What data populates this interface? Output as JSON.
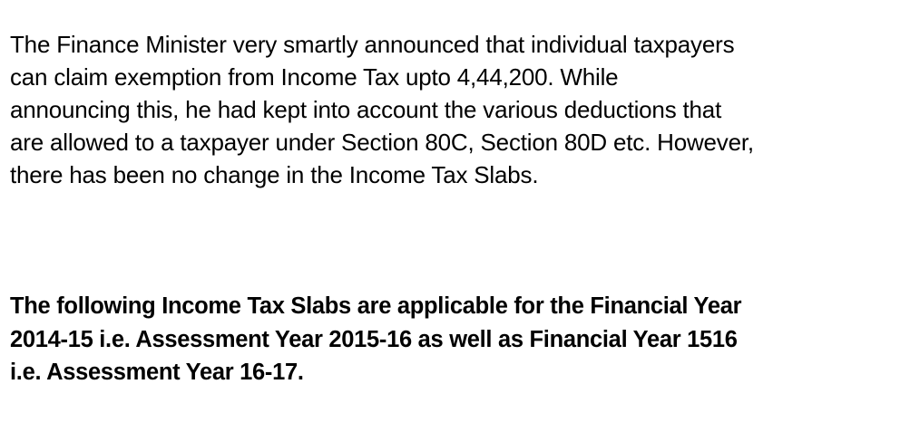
{
  "paragraph_1": {
    "lines": [
      "The Finance Minister very smartly announced that individual taxpayers",
      "can claim exemption from Income Tax upto 4,44,200. While",
      "announcing this, he had kept into account the various deductions that",
      "are allowed to a taxpayer under Section 80C, Section 80D etc. However,",
      "there has been no change in the Income Tax Slabs."
    ]
  },
  "paragraph_2": {
    "lines": [
      "The following Income Tax Slabs are applicable for the Financial Year",
      "2014-15 i.e. Assessment Year 2015-16 as well as Financial Year 1516",
      "i.e. Assessment Year 16-17."
    ]
  },
  "colors": {
    "background": "#ffffff",
    "text": "#000000"
  }
}
